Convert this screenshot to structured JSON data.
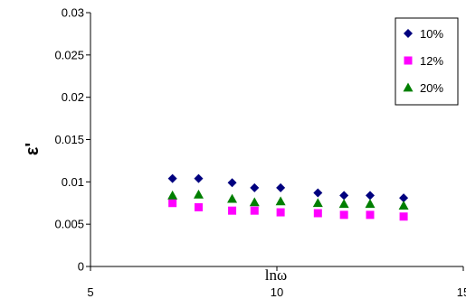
{
  "chart_data": {
    "type": "scatter",
    "title": "",
    "xlabel": "lnω",
    "ylabel": "ε'",
    "xlim": [
      5,
      15
    ],
    "ylim": [
      0,
      0.03
    ],
    "x_ticks": [
      "5",
      "10",
      "15"
    ],
    "y_ticks": [
      "0",
      "0.005",
      "0.01",
      "0.015",
      "0.02",
      "0.025",
      "0.03"
    ],
    "grid": false,
    "legend_position": "top-right",
    "series": [
      {
        "name": "10%",
        "color": "#00007f",
        "marker": "diamond",
        "x": [
          7.2,
          7.9,
          8.8,
          9.4,
          10.1,
          11.1,
          11.8,
          12.5,
          13.4
        ],
        "y": [
          0.0104,
          0.0104,
          0.0099,
          0.0093,
          0.0093,
          0.0087,
          0.0084,
          0.0084,
          0.0081
        ]
      },
      {
        "name": "12%",
        "color": "#ff00ff",
        "marker": "square",
        "x": [
          7.2,
          7.9,
          8.8,
          9.4,
          10.1,
          11.1,
          11.8,
          12.5,
          13.4
        ],
        "y": [
          0.0075,
          0.007,
          0.0066,
          0.0066,
          0.0064,
          0.0063,
          0.0061,
          0.0061,
          0.0059
        ]
      },
      {
        "name": "20%",
        "color": "#007f00",
        "marker": "triangle",
        "x": [
          7.2,
          7.9,
          8.8,
          9.4,
          10.1,
          11.1,
          11.8,
          12.5,
          13.4
        ],
        "y": [
          0.0084,
          0.0085,
          0.008,
          0.0076,
          0.0077,
          0.0075,
          0.0074,
          0.0074,
          0.0072
        ]
      }
    ]
  }
}
